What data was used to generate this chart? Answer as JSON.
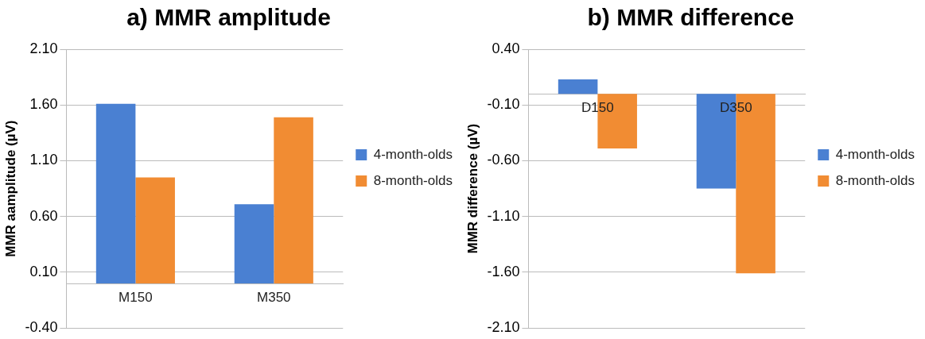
{
  "chart_data": [
    {
      "type": "bar",
      "title": "a) MMR amplitude",
      "ylabel": "MMR aamplitude (µV)",
      "categories": [
        "M150",
        "M350"
      ],
      "series": [
        {
          "name": "4-month-olds",
          "color": "#4a80d2",
          "values": [
            1.61,
            0.71
          ]
        },
        {
          "name": "8-month-olds",
          "color": "#f18c33",
          "values": [
            0.95,
            1.49
          ]
        }
      ],
      "ylim": [
        -0.4,
        2.1
      ],
      "yticks": [
        {
          "value": -0.4,
          "label": "-0.40"
        },
        {
          "value": 0.1,
          "label": "0.10"
        },
        {
          "value": 0.6,
          "label": "0.60"
        },
        {
          "value": 1.1,
          "label": "1.10"
        },
        {
          "value": 1.6,
          "label": "1.60"
        },
        {
          "value": 2.1,
          "label": "2.10"
        }
      ],
      "grid": "y",
      "legend": "right"
    },
    {
      "type": "bar",
      "title": "b) MMR difference",
      "ylabel": "MMR difference (µV)",
      "categories": [
        "D150",
        "D350"
      ],
      "series": [
        {
          "name": "4-month-olds",
          "color": "#4a80d2",
          "values": [
            0.13,
            -0.85
          ]
        },
        {
          "name": "8-month-olds",
          "color": "#f18c33",
          "values": [
            -0.49,
            -1.61
          ]
        }
      ],
      "ylim": [
        -2.1,
        0.4
      ],
      "yticks": [
        {
          "value": -2.1,
          "label": "-2.10"
        },
        {
          "value": -1.6,
          "label": "-1.60"
        },
        {
          "value": -1.1,
          "label": "-1.10"
        },
        {
          "value": -0.6,
          "label": "-0.60"
        },
        {
          "value": -0.1,
          "label": "-0.10"
        },
        {
          "value": 0.4,
          "label": "0.40"
        }
      ],
      "grid": "y",
      "legend": "right"
    }
  ]
}
